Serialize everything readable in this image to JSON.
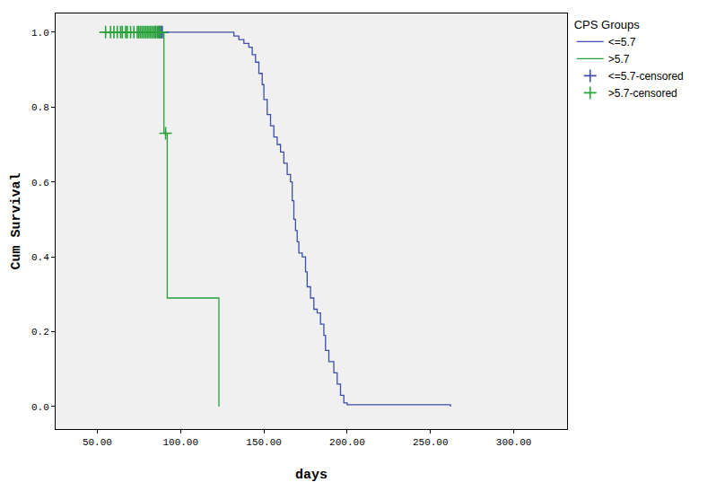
{
  "chart_data": {
    "type": "line",
    "x_label": "days",
    "y_label": "Cum Survival",
    "legend_title": "CPS Groups",
    "legend": "upper right",
    "grid": false,
    "xlim": [
      25,
      332
    ],
    "ylim": [
      -0.06,
      1.05
    ],
    "xticks": [
      {
        "value": 50,
        "label": "50.00"
      },
      {
        "value": 100,
        "label": "100.00"
      },
      {
        "value": 150,
        "label": "150.00"
      },
      {
        "value": 200,
        "label": "200.00"
      },
      {
        "value": 250,
        "label": "250.00"
      },
      {
        "value": 300,
        "label": "300.00"
      }
    ],
    "yticks": [
      {
        "value": 0,
        "label": "0.0"
      },
      0.2,
      0.4,
      0.6,
      0.8,
      {
        "value": 1,
        "label": "1.0"
      }
    ],
    "series": [
      {
        "name": "<=5.7",
        "color": "#3c4ea8",
        "type": "line",
        "line_style": "step",
        "x": [
          55,
          130,
          132,
          135,
          138,
          141,
          143,
          145,
          147,
          149,
          150,
          152,
          154,
          156,
          158,
          160,
          162,
          164,
          166,
          167,
          168,
          169,
          170,
          171,
          173,
          175,
          176,
          178,
          180,
          182,
          184,
          186,
          187,
          189,
          192,
          194,
          196,
          198,
          200,
          262
        ],
        "values": [
          1,
          1,
          0.99,
          0.98,
          0.97,
          0.96,
          0.94,
          0.92,
          0.89,
          0.86,
          0.82,
          0.78,
          0.75,
          0.72,
          0.7,
          0.68,
          0.65,
          0.62,
          0.6,
          0.55,
          0.5,
          0.47,
          0.44,
          0.41,
          0.4,
          0.36,
          0.32,
          0.29,
          0.26,
          0.25,
          0.22,
          0.19,
          0.15,
          0.12,
          0.09,
          0.06,
          0.03,
          0.01,
          0.005,
          0
        ]
      },
      {
        "name": ">5.7",
        "color": "#27a23a",
        "type": "line",
        "line_style": "step",
        "x": [
          55,
          90,
          92,
          123
        ],
        "values": [
          1,
          0.73,
          0.29,
          0
        ]
      },
      {
        "name": "<=5.7-censored",
        "color": "#3c4ea8",
        "type": "scatter",
        "marker": "cross",
        "x": [
          85,
          87,
          88,
          89
        ],
        "values": [
          1,
          1,
          1,
          1
        ]
      },
      {
        "name": ">5.7-censored",
        "color": "#27a23a",
        "type": "scatter",
        "marker": "cross",
        "x": [
          55,
          58,
          60,
          62,
          64,
          65,
          67,
          68,
          70,
          72,
          74,
          75,
          76,
          77,
          78,
          79,
          80,
          81,
          82,
          83,
          84,
          85,
          86,
          87,
          88,
          91
        ],
        "values": [
          1,
          1,
          1,
          1,
          1,
          1,
          1,
          1,
          1,
          1,
          1,
          1,
          1,
          1,
          1,
          1,
          1,
          1,
          1,
          1,
          1,
          1,
          1,
          1,
          1,
          0.73
        ]
      }
    ]
  }
}
